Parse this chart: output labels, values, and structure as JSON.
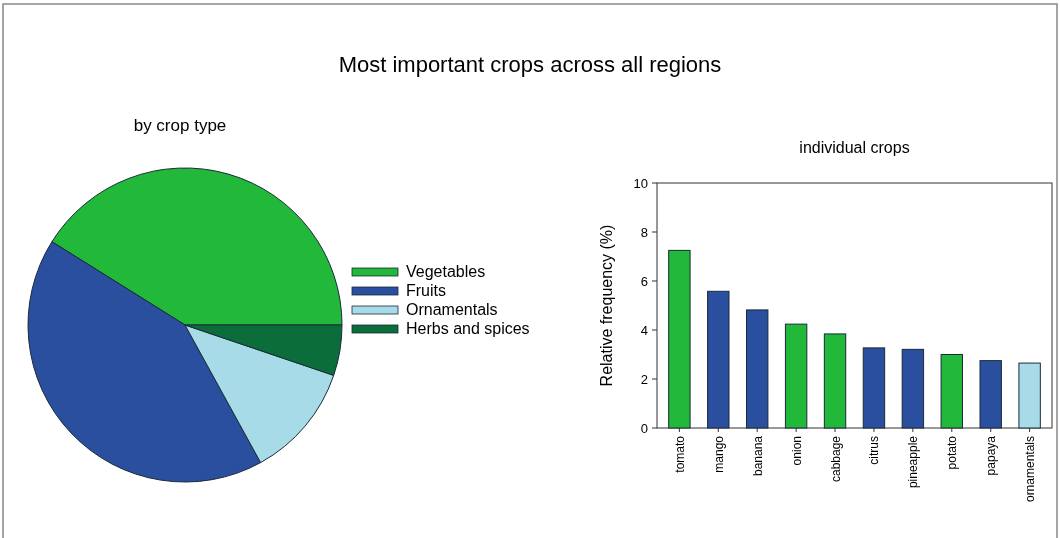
{
  "chart_data": [
    {
      "type": "pie",
      "title": "Most important crops across all regions",
      "subtitle": "by crop type",
      "categories": [
        "Vegetables",
        "Fruits",
        "Ornamentals",
        "Herbs and spices"
      ],
      "values": [
        41.1,
        41.9,
        11.8,
        5.2
      ],
      "colors": [
        "#22b83a",
        "#2a4f9e",
        "#a8dbe8",
        "#0b6e3a"
      ],
      "legend": "right"
    },
    {
      "type": "bar",
      "title": "individual crops",
      "ylabel": "Relative frequency (%)",
      "categories": [
        "tomato",
        "mango",
        "banana",
        "onion",
        "cabbage",
        "citrus",
        "pineapple",
        "potato",
        "papaya",
        "ornamentals"
      ],
      "values": [
        7.25,
        5.58,
        4.82,
        4.24,
        3.84,
        3.27,
        3.21,
        3.0,
        2.75,
        2.65
      ],
      "colors": [
        "#22b83a",
        "#2a4f9e",
        "#2a4f9e",
        "#22b83a",
        "#22b83a",
        "#2a4f9e",
        "#2a4f9e",
        "#22b83a",
        "#2a4f9e",
        "#a8dbe8"
      ],
      "ylim": [
        0,
        10
      ],
      "yticks": [
        0,
        2,
        4,
        6,
        8,
        10
      ],
      "grid": false
    }
  ]
}
